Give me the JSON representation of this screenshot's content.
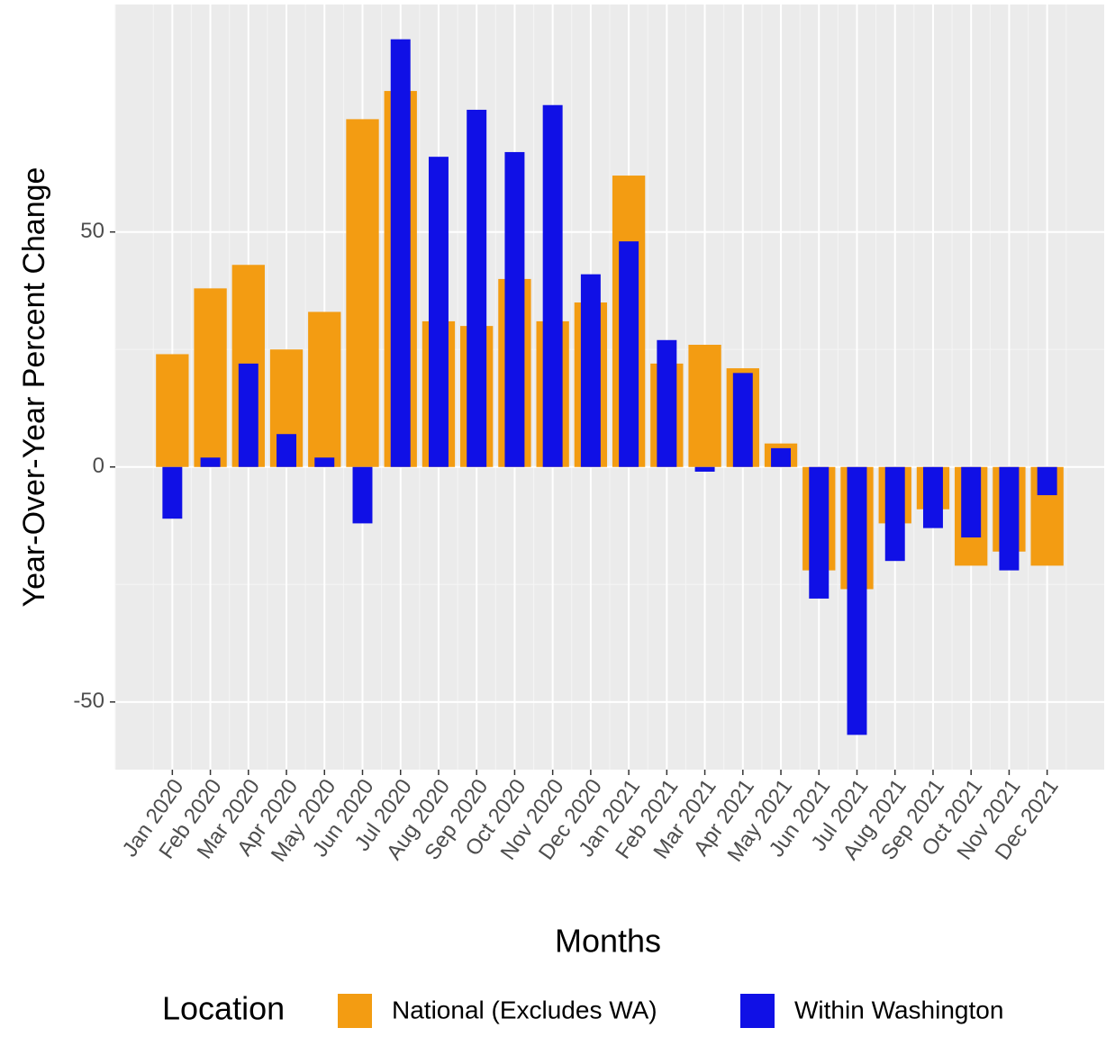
{
  "chart_data": {
    "type": "bar",
    "x_label": "Months",
    "y_label": "Year-Over-Year Percent Change",
    "legend_title": "Location",
    "legend_position": "bottom",
    "grid": true,
    "categories": [
      "Jan 2020",
      "Feb 2020",
      "Mar 2020",
      "Apr 2020",
      "May 2020",
      "Jun 2020",
      "Jul 2020",
      "Aug 2020",
      "Sep 2020",
      "Oct 2020",
      "Nov 2020",
      "Dec 2020",
      "Jan 2021",
      "Feb 2021",
      "Mar 2021",
      "Apr 2021",
      "May 2021",
      "Jun 2021",
      "Jul 2021",
      "Aug 2021",
      "Sep 2021",
      "Oct 2021",
      "Nov 2021",
      "Dec 2021"
    ],
    "series": [
      {
        "name": "National (Excludes WA)",
        "color": "#f39c12",
        "values": [
          24,
          38,
          43,
          25,
          33,
          74,
          80,
          31,
          30,
          40,
          31,
          35,
          62,
          22,
          26,
          21,
          5,
          -22,
          -26,
          -12,
          -9,
          -21,
          -18,
          -21
        ]
      },
      {
        "name": "Within Washington",
        "color": "#1010e6",
        "values": [
          -11,
          2,
          22,
          7,
          2,
          -12,
          91,
          66,
          76,
          67,
          77,
          41,
          48,
          27,
          -1,
          20,
          4,
          -28,
          -57,
          -20,
          -13,
          -15,
          -22,
          -6
        ]
      }
    ],
    "ylim": [
      -64.4,
      98.4
    ],
    "yticks": [
      -50,
      0,
      50
    ]
  }
}
